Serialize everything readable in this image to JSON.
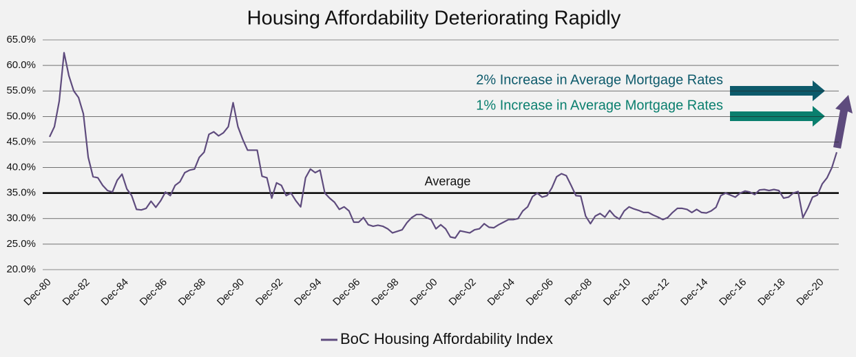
{
  "chart_data": {
    "type": "line",
    "title": "Housing Affordability Deteriorating Rapidly",
    "categories": [
      "Dec-80",
      null,
      null,
      null,
      null,
      null,
      null,
      null,
      "Dec-82",
      null,
      null,
      null,
      null,
      null,
      null,
      null,
      "Dec-84",
      null,
      null,
      null,
      null,
      null,
      null,
      null,
      "Dec-86",
      null,
      null,
      null,
      null,
      null,
      null,
      null,
      "Dec-88",
      null,
      null,
      null,
      null,
      null,
      null,
      null,
      "Dec-90",
      null,
      null,
      null,
      null,
      null,
      null,
      null,
      "Dec-92",
      null,
      null,
      null,
      null,
      null,
      null,
      null,
      "Dec-94",
      null,
      null,
      null,
      null,
      null,
      null,
      null,
      "Dec-96",
      null,
      null,
      null,
      null,
      null,
      null,
      null,
      "Dec-98",
      null,
      null,
      null,
      null,
      null,
      null,
      null,
      "Dec-00",
      null,
      null,
      null,
      null,
      null,
      null,
      null,
      "Dec-02",
      null,
      null,
      null,
      null,
      null,
      null,
      null,
      "Dec-04",
      null,
      null,
      null,
      null,
      null,
      null,
      null,
      "Dec-06",
      null,
      null,
      null,
      null,
      null,
      null,
      null,
      "Dec-08",
      null,
      null,
      null,
      null,
      null,
      null,
      null,
      "Dec-10",
      null,
      null,
      null,
      null,
      null,
      null,
      null,
      "Dec-12",
      null,
      null,
      null,
      null,
      null,
      null,
      null,
      "Dec-14",
      null,
      null,
      null,
      null,
      null,
      null,
      null,
      "Dec-16",
      null,
      null,
      null,
      null,
      null,
      null,
      null,
      "Dec-18",
      null,
      null,
      null,
      null,
      null,
      null,
      null,
      "Dec-20",
      null,
      null,
      null
    ],
    "series": [
      {
        "name": "BoC Housing Affordability Index",
        "color": "#5e4b7d",
        "values": [
          46,
          48,
          53,
          62.5,
          58,
          55,
          53.7,
          50.5,
          42,
          38.2,
          38,
          36.5,
          35.5,
          35.2,
          37.5,
          38.7,
          35.8,
          34.5,
          31.8,
          31.7,
          32,
          33.4,
          32.2,
          33.5,
          35.2,
          34.5,
          36.5,
          37.2,
          39,
          39.5,
          39.7,
          42,
          43,
          46.5,
          47,
          46.2,
          46.8,
          48,
          52.7,
          48,
          45.5,
          43.4,
          43.4,
          43.4,
          38.3,
          38,
          34,
          37,
          36.5,
          34.5,
          35,
          33.5,
          32.3,
          38,
          39.7,
          39,
          39.5,
          35,
          34,
          33.2,
          31.8,
          32.3,
          31.5,
          29.3,
          29.3,
          30.2,
          28.8,
          28.5,
          28.7,
          28.5,
          28,
          27.2,
          27.5,
          27.8,
          29.2,
          30.2,
          30.8,
          30.8,
          30.2,
          29.8,
          28,
          28.8,
          28,
          26.4,
          26.2,
          27.6,
          27.4,
          27.2,
          27.8,
          28,
          29,
          28.3,
          28.2,
          28.8,
          29.3,
          29.8,
          29.8,
          30,
          31.5,
          32.3,
          34.3,
          35,
          34.2,
          34.5,
          36,
          38.2,
          38.8,
          38.4,
          36.5,
          34.5,
          34.4,
          30.5,
          29,
          30.5,
          31,
          30.3,
          31.6,
          30.5,
          29.9,
          31.5,
          32.3,
          31.9,
          31.6,
          31.2,
          31.2,
          30.7,
          30.3,
          29.8,
          30.2,
          31.2,
          32,
          32,
          31.8,
          31.2,
          31.8,
          31.2,
          31.1,
          31.5,
          32.2,
          34.5,
          35,
          34.6,
          34.2,
          35,
          35.4,
          35.2,
          34.7,
          35.6,
          35.7,
          35.5,
          35.7,
          35.5,
          34,
          34.2,
          35,
          35.3,
          30.2,
          32,
          34.2,
          34.6,
          36.8,
          38,
          40,
          43
        ]
      }
    ],
    "ylim": [
      20,
      65
    ],
    "yticks": [
      {
        "value": 20,
        "label": "20.0%"
      },
      {
        "value": 25,
        "label": "25.0%"
      },
      {
        "value": 30,
        "label": "30.0%"
      },
      {
        "value": 35,
        "label": "35.0%"
      },
      {
        "value": 40,
        "label": "40.0%"
      },
      {
        "value": 45,
        "label": "45.0%"
      },
      {
        "value": 50,
        "label": "50.0%"
      },
      {
        "value": 55,
        "label": "55.0%"
      },
      {
        "value": 60,
        "label": "60.0%"
      },
      {
        "value": 65,
        "label": "65.0%"
      }
    ],
    "grid": true,
    "reference_line": {
      "value": 35,
      "label": "Average"
    },
    "annotations": [
      "2% Increase in Average Mortgage Rates",
      "1% Increase in Average Mortgage Rates"
    ],
    "legend": "bottom"
  }
}
